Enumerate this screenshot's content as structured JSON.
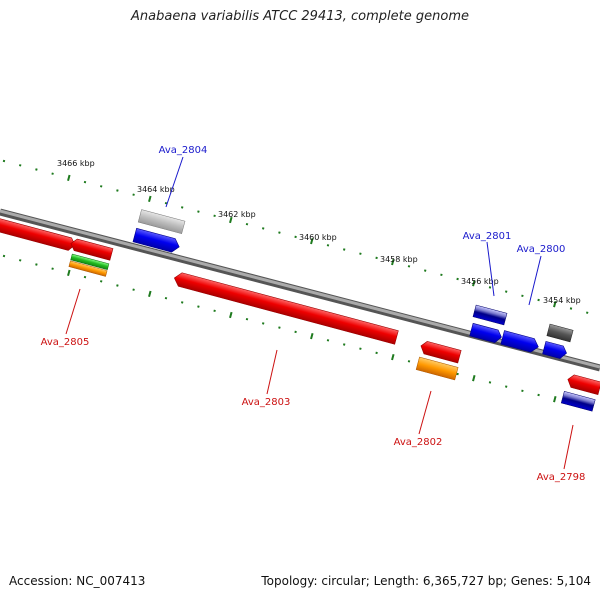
{
  "title": "Anabaena variabilis ATCC 29413, complete genome",
  "footer": {
    "accession": "Accession: NC_007413",
    "summary": "Topology: circular; Length: 6,365,727 bp; Genes: 5,104"
  },
  "colors": {
    "forward_label": "#1a1acc",
    "reverse_label": "#cc1111",
    "tick": "#1e7a1e",
    "backbone": "#808080"
  },
  "ticks": [
    "3466 kbp",
    "3464 kbp",
    "3462 kbp",
    "3460 kbp",
    "3458 kbp",
    "3456 kbp",
    "3454 kbp"
  ],
  "genes": [
    {
      "label": "Ava_2804",
      "strand": "forward"
    },
    {
      "label": "Ava_2801",
      "strand": "forward"
    },
    {
      "label": "Ava_2800",
      "strand": "forward"
    },
    {
      "label": "Ava_2805",
      "strand": "reverse"
    },
    {
      "label": "Ava_2803",
      "strand": "reverse"
    },
    {
      "label": "Ava_2802",
      "strand": "reverse"
    },
    {
      "label": "Ava_2798",
      "strand": "reverse"
    }
  ]
}
